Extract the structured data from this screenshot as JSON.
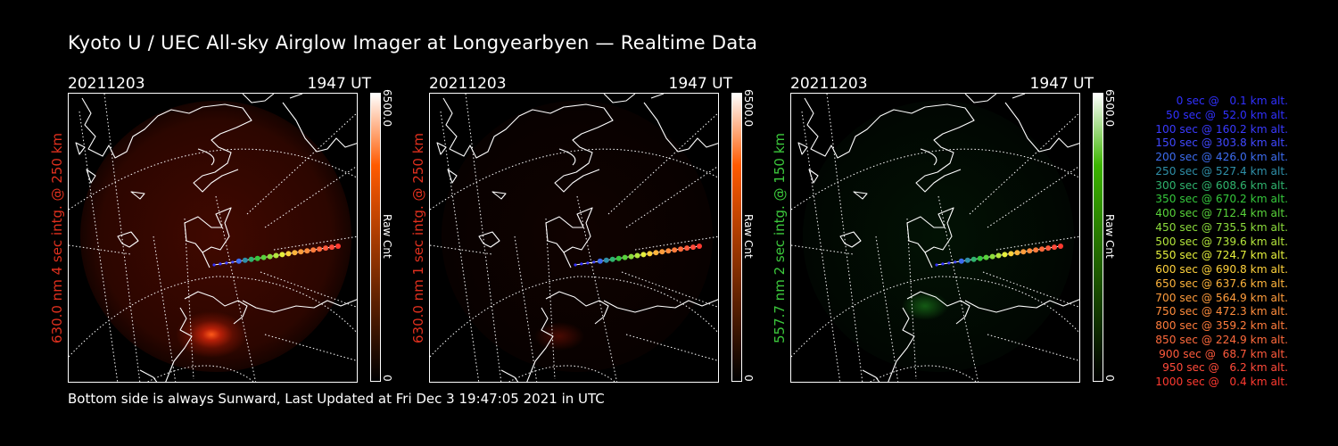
{
  "title": "Kyoto U / UEC All-sky Airglow Imager at Longyearbyen — Realtime Data",
  "footer": "Bottom side is always Sunward, Last Updated at Fri Dec  3 19:47:05 2021 in UTC",
  "panels": [
    {
      "date": "20211203",
      "time": "1947 UT",
      "ylabel": "630.0 nm 4 sec intg. @ 250 km",
      "label_color": "#e0301e",
      "cbar_max": "6500.0",
      "cbar_label": "Raw Cnt",
      "cbar_min": "0",
      "cbar_color": "#ff5a00"
    },
    {
      "date": "20211203",
      "time": "1947 UT",
      "ylabel": "630.0 nm 1 sec intg. @ 250 km",
      "label_color": "#e0301e",
      "cbar_max": "6500.0",
      "cbar_label": "Raw Cnt",
      "cbar_min": "0",
      "cbar_color": "#ff5a00"
    },
    {
      "date": "20211203",
      "time": "1947 UT",
      "ylabel": "557.7 nm 2 sec intg. @ 150 km",
      "label_color": "#3cc83c",
      "cbar_max": "6500.0",
      "cbar_label": "Raw Cnt",
      "cbar_min": "0",
      "cbar_color": "#3cb400"
    }
  ],
  "legend": [
    {
      "text": "0 sec @   0.1 km alt.",
      "color": "#3030ff"
    },
    {
      "text": "50 sec @  52.0 km alt.",
      "color": "#3030ff"
    },
    {
      "text": "100 sec @ 160.2 km alt.",
      "color": "#3a3aff"
    },
    {
      "text": "150 sec @ 303.8 km alt.",
      "color": "#4048ff"
    },
    {
      "text": "200 sec @ 426.0 km alt.",
      "color": "#3c6cf0"
    },
    {
      "text": "250 sec @ 527.4 km alt.",
      "color": "#2f8fa8"
    },
    {
      "text": "300 sec @ 608.6 km alt.",
      "color": "#2fb46e"
    },
    {
      "text": "350 sec @ 670.2 km alt.",
      "color": "#35c83c"
    },
    {
      "text": "400 sec @ 712.4 km alt.",
      "color": "#58d23a"
    },
    {
      "text": "450 sec @ 735.5 km alt.",
      "color": "#8cdc3c"
    },
    {
      "text": "500 sec @ 739.6 km alt.",
      "color": "#b4e63c"
    },
    {
      "text": "550 sec @ 724.7 km alt.",
      "color": "#e6f03c"
    },
    {
      "text": "600 sec @ 690.8 km alt.",
      "color": "#ffd23c"
    },
    {
      "text": "650 sec @ 637.6 km alt.",
      "color": "#ffb43c"
    },
    {
      "text": "700 sec @ 564.9 km alt.",
      "color": "#ff9c3c"
    },
    {
      "text": "750 sec @ 472.3 km alt.",
      "color": "#ff8c3c"
    },
    {
      "text": "800 sec @ 359.2 km alt.",
      "color": "#ff7c3c"
    },
    {
      "text": "850 sec @ 224.9 km alt.",
      "color": "#ff6a3c"
    },
    {
      "text": "900 sec @  68.7 km alt.",
      "color": "#ff5a3c"
    },
    {
      "text": "950 sec @   6.2 km alt.",
      "color": "#ff4a3a"
    },
    {
      "text": "1000 sec @   0.4 km alt.",
      "color": "#ff3a30"
    }
  ]
}
